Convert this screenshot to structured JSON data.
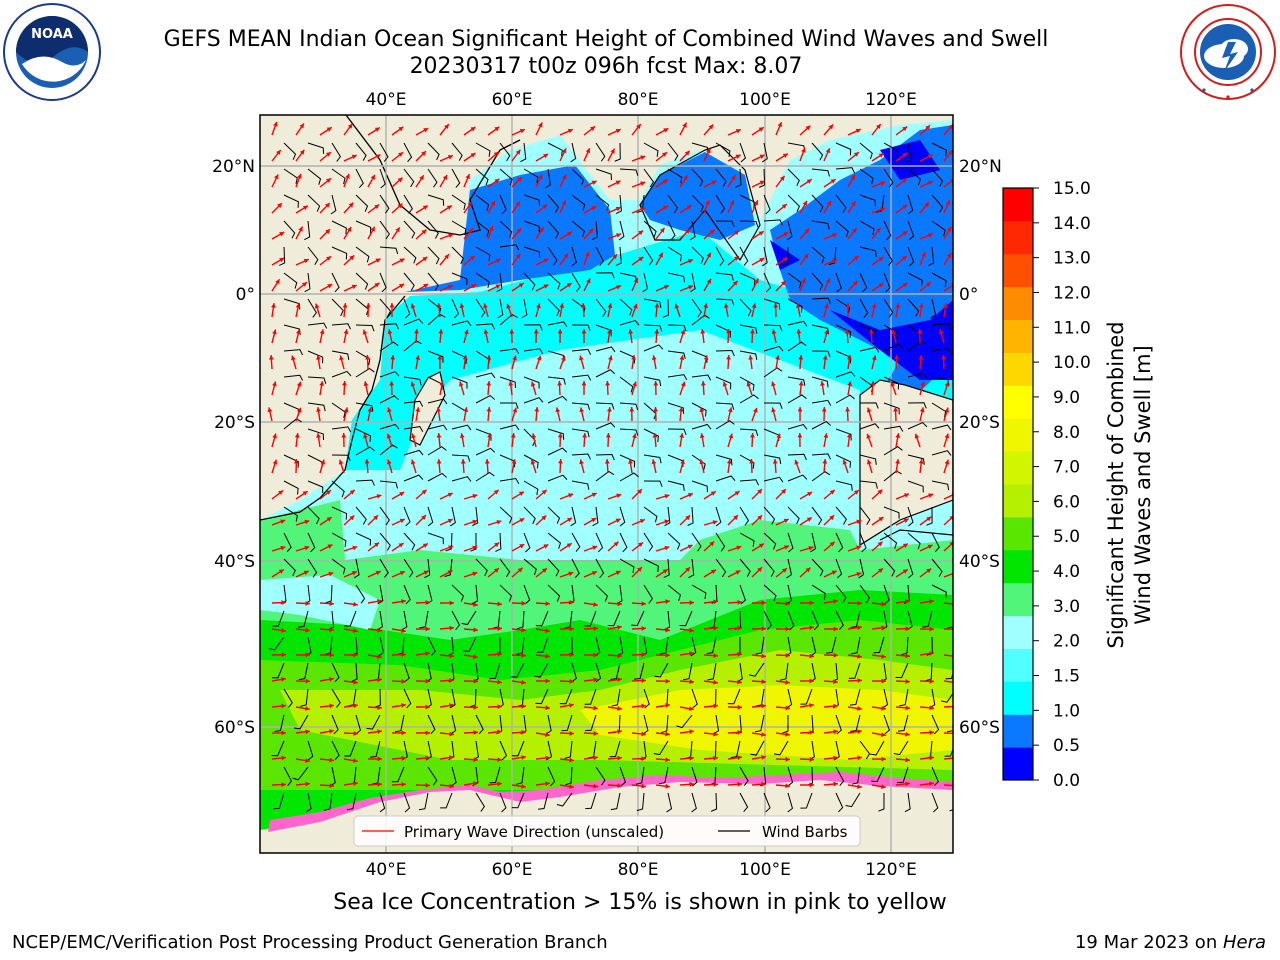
{
  "header": {
    "title_line1": "GEFS MEAN Indian Ocean Significant Height of Combined Wind Waves and Swell",
    "title_line2": "20230317 t00z 096h fcst   Max: 8.07"
  },
  "logos": {
    "left_text": "NOAA",
    "left_ring_text": "NATIONAL OCEANIC AND ATMOSPHERIC ADMINISTRATION · U.S. DEPARTMENT OF COMMERCE",
    "right_ring_text": "NATIONAL WEATHER SERVICE"
  },
  "map": {
    "lon_labels": [
      "40°E",
      "60°E",
      "80°E",
      "100°E",
      "120°E"
    ],
    "lat_labels_left": [
      "20°N",
      "0°",
      "20°S",
      "40°S",
      "60°S"
    ],
    "lat_labels_right": [
      "20°N",
      "0°",
      "20°S",
      "40°S",
      "60°S"
    ],
    "legend": {
      "wave_label": "Primary Wave Direction (unscaled)",
      "wave_color": "#ff0000",
      "barb_label": "Wind Barbs",
      "barb_color": "#000000"
    },
    "land_color": "#efecd9"
  },
  "colorbar": {
    "label_line1": "Significant Height of Combined",
    "label_line2": "Wind Waves and Swell [m]",
    "ticks": [
      "15.0",
      "14.0",
      "13.0",
      "12.0",
      "11.0",
      "10.0",
      "9.0",
      "8.0",
      "7.0",
      "6.0",
      "5.0",
      "4.0",
      "3.0",
      "2.0",
      "1.5",
      "1.0",
      "0.5",
      "0.0"
    ],
    "colors": [
      "#0000ff",
      "#0a78ff",
      "#00ffff",
      "#50ffff",
      "#a0ffff",
      "#50f57a",
      "#00e600",
      "#5ae600",
      "#b4f000",
      "#d2f500",
      "#f0f500",
      "#ffff00",
      "#ffd700",
      "#ffb400",
      "#ff8c00",
      "#ff5000",
      "#ff2800",
      "#ff0000"
    ]
  },
  "note": "Sea Ice Concentration > 15% is shown in pink to yellow",
  "footer": {
    "left": "NCEP/EMC/Verification Post Processing Product Generation Branch",
    "right_prefix": "19 Mar 2023 on ",
    "right_host": "Hera"
  }
}
